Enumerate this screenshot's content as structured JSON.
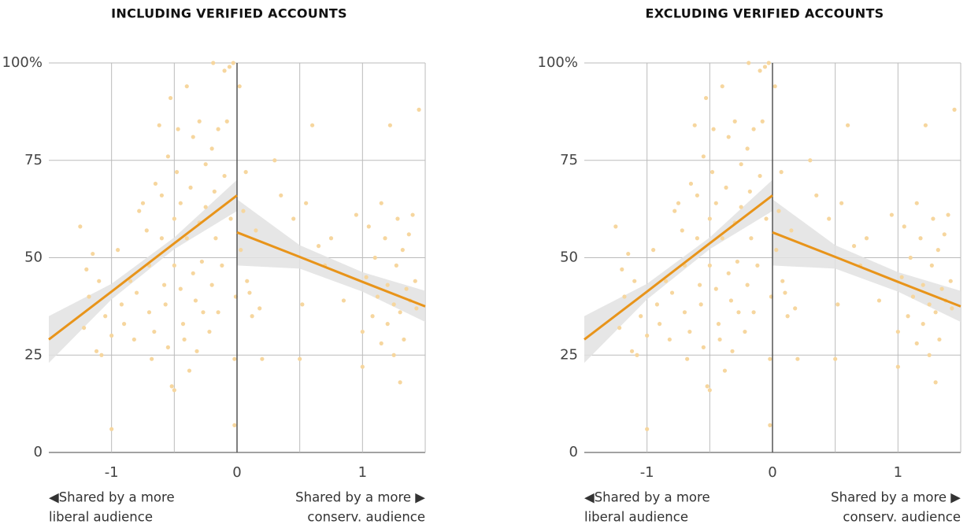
{
  "chart_data": [
    {
      "type": "scatter",
      "title": "INCLUDING VERIFIED ACCOUNTS",
      "xlim": [
        -1.5,
        1.5
      ],
      "xticks": [
        -1,
        0,
        1
      ],
      "xgrid": [
        -1,
        -0.5,
        0.5,
        1
      ],
      "zero_line": 0,
      "ylim": [
        0,
        100
      ],
      "yticks": [
        0,
        25,
        50,
        75,
        {
          "value": 100,
          "label": "100%"
        }
      ],
      "grid": true,
      "point_color": "#f6d69e",
      "line_color": "#e8941a",
      "band_color": "#e2e2e2",
      "x": [
        -1.25,
        -1.2,
        -1.15,
        -1.18,
        -1.22,
        -1.1,
        -1.05,
        -1.0,
        -1.0,
        -1.08,
        -1.12,
        -0.95,
        -0.92,
        -0.9,
        -0.85,
        -0.82,
        -0.8,
        -0.78,
        -0.75,
        -0.72,
        -0.7,
        -0.7,
        -0.68,
        -0.66,
        -0.65,
        -0.62,
        -0.6,
        -0.6,
        -0.58,
        -0.57,
        -0.55,
        -0.55,
        -0.53,
        -0.52,
        -0.5,
        -0.5,
        -0.5,
        -0.48,
        -0.47,
        -0.45,
        -0.45,
        -0.43,
        -0.42,
        -0.4,
        -0.4,
        -0.38,
        -0.37,
        -0.35,
        -0.35,
        -0.33,
        -0.32,
        -0.3,
        -0.3,
        -0.28,
        -0.27,
        -0.25,
        -0.25,
        -0.22,
        -0.2,
        -0.2,
        -0.18,
        -0.17,
        -0.15,
        -0.15,
        -0.19,
        -0.12,
        -0.1,
        -0.1,
        -0.08,
        -0.06,
        -0.05,
        -0.03,
        -0.02,
        -0.02,
        -0.01,
        0.02,
        0.03,
        0.05,
        0.07,
        0.08,
        0.1,
        0.12,
        0.15,
        0.18,
        0.2,
        0.3,
        0.35,
        0.45,
        0.5,
        0.52,
        0.55,
        0.6,
        0.65,
        0.7,
        0.75,
        0.85,
        0.95,
        1.0,
        1.0,
        1.03,
        1.05,
        1.08,
        1.1,
        1.12,
        1.15,
        1.15,
        1.18,
        1.2,
        1.2,
        1.22,
        1.25,
        1.25,
        1.27,
        1.28,
        1.3,
        1.3,
        1.32,
        1.33,
        1.35,
        1.37,
        1.38,
        1.4,
        1.42,
        1.43,
        1.45
      ],
      "values": [
        58,
        47,
        51,
        40,
        32,
        44,
        35,
        6,
        30,
        25,
        26,
        52,
        38,
        33,
        44,
        29,
        41,
        62,
        64,
        57,
        48,
        36,
        24,
        31,
        69,
        84,
        66,
        55,
        43,
        38,
        27,
        76,
        91,
        17,
        16,
        60,
        48,
        72,
        83,
        64,
        42,
        33,
        29,
        94,
        55,
        21,
        68,
        81,
        46,
        39,
        26,
        85,
        59,
        49,
        36,
        74,
        63,
        31,
        43,
        78,
        67,
        55,
        83,
        36,
        100,
        48,
        71,
        98,
        85,
        99,
        60,
        100,
        7,
        24,
        40,
        94,
        52,
        62,
        72,
        44,
        41,
        35,
        57,
        37,
        24,
        75,
        66,
        60,
        24,
        38,
        64,
        84,
        53,
        48,
        55,
        39,
        61,
        31,
        22,
        45,
        58,
        35,
        50,
        40,
        28,
        64,
        55,
        33,
        43,
        84,
        38,
        25,
        48,
        60,
        18,
        36,
        52,
        29,
        42,
        56,
        39,
        61,
        44,
        37,
        88
      ],
      "fits": [
        {
          "x": [
            -1.5,
            -1,
            -0.5,
            0
          ],
          "y": [
            29,
            41.3,
            53.7,
            66
          ],
          "lower": [
            23,
            39.3,
            52.2,
            62
          ],
          "upper": [
            35,
            43.3,
            55.2,
            70
          ]
        },
        {
          "x": [
            0,
            0.5,
            1,
            1.5
          ],
          "y": [
            56.5,
            50.2,
            43.8,
            37.5
          ],
          "lower": [
            48,
            47.2,
            41.3,
            33.5
          ],
          "upper": [
            65,
            53.2,
            46.3,
            41.5
          ]
        }
      ],
      "annotations": [
        {
          "lines": [
            "◀Shared by a more",
            "liberal audience"
          ]
        },
        {
          "lines": [
            "Shared by a more ▶",
            "conserv. audience"
          ]
        }
      ]
    },
    {
      "type": "scatter",
      "title": "EXCLUDING VERIFIED ACCOUNTS",
      "xlim": [
        -1.5,
        1.5
      ],
      "xticks": [
        -1,
        0,
        1
      ],
      "xgrid": [
        -1,
        -0.5,
        0.5,
        1
      ],
      "zero_line": 0,
      "ylim": [
        0,
        100
      ],
      "yticks": [
        0,
        25,
        50,
        75,
        {
          "value": 100,
          "label": "100%"
        }
      ],
      "grid": true,
      "point_color": "#f6d69e",
      "line_color": "#e8941a",
      "band_color": "#e2e2e2",
      "x": [
        -1.25,
        -1.2,
        -1.15,
        -1.18,
        -1.22,
        -1.1,
        -1.05,
        -1.0,
        -1.0,
        -1.08,
        -1.12,
        -0.95,
        -0.92,
        -0.9,
        -0.85,
        -0.82,
        -0.8,
        -0.78,
        -0.75,
        -0.72,
        -0.7,
        -0.7,
        -0.68,
        -0.66,
        -0.65,
        -0.62,
        -0.6,
        -0.6,
        -0.58,
        -0.57,
        -0.55,
        -0.55,
        -0.53,
        -0.52,
        -0.5,
        -0.5,
        -0.5,
        -0.48,
        -0.47,
        -0.45,
        -0.45,
        -0.43,
        -0.42,
        -0.4,
        -0.4,
        -0.38,
        -0.37,
        -0.35,
        -0.35,
        -0.33,
        -0.32,
        -0.3,
        -0.3,
        -0.28,
        -0.27,
        -0.25,
        -0.25,
        -0.22,
        -0.2,
        -0.2,
        -0.18,
        -0.17,
        -0.15,
        -0.15,
        -0.19,
        -0.12,
        -0.1,
        -0.1,
        -0.08,
        -0.06,
        -0.05,
        -0.03,
        -0.02,
        -0.02,
        -0.01,
        0.02,
        0.03,
        0.05,
        0.07,
        0.08,
        0.1,
        0.12,
        0.15,
        0.18,
        0.2,
        0.3,
        0.35,
        0.45,
        0.5,
        0.52,
        0.55,
        0.6,
        0.65,
        0.7,
        0.75,
        0.85,
        0.95,
        1.0,
        1.0,
        1.03,
        1.05,
        1.08,
        1.1,
        1.12,
        1.15,
        1.15,
        1.18,
        1.2,
        1.2,
        1.22,
        1.25,
        1.25,
        1.27,
        1.28,
        1.3,
        1.3,
        1.32,
        1.33,
        1.35,
        1.37,
        1.38,
        1.4,
        1.42,
        1.43,
        1.45
      ],
      "values": [
        58,
        47,
        51,
        40,
        32,
        44,
        35,
        6,
        30,
        25,
        26,
        52,
        38,
        33,
        44,
        29,
        41,
        62,
        64,
        57,
        48,
        36,
        24,
        31,
        69,
        84,
        66,
        55,
        43,
        38,
        27,
        76,
        91,
        17,
        16,
        60,
        48,
        72,
        83,
        64,
        42,
        33,
        29,
        94,
        55,
        21,
        68,
        81,
        46,
        39,
        26,
        85,
        59,
        49,
        36,
        74,
        63,
        31,
        43,
        78,
        67,
        55,
        83,
        36,
        100,
        48,
        71,
        98,
        85,
        99,
        60,
        100,
        7,
        24,
        40,
        94,
        52,
        62,
        72,
        44,
        41,
        35,
        57,
        37,
        24,
        75,
        66,
        60,
        24,
        38,
        64,
        84,
        53,
        48,
        55,
        39,
        61,
        31,
        22,
        45,
        58,
        35,
        50,
        40,
        28,
        64,
        55,
        33,
        43,
        84,
        38,
        25,
        48,
        60,
        18,
        36,
        52,
        29,
        42,
        56,
        39,
        61,
        44,
        37,
        88
      ],
      "fits": [
        {
          "x": [
            -1.5,
            -1,
            -0.5,
            0
          ],
          "y": [
            29,
            41.3,
            53.7,
            66
          ],
          "lower": [
            23,
            39.3,
            52.2,
            62
          ],
          "upper": [
            35,
            43.3,
            55.2,
            70
          ]
        },
        {
          "x": [
            0,
            0.5,
            1,
            1.5
          ],
          "y": [
            56.5,
            50.2,
            43.8,
            37.5
          ],
          "lower": [
            48,
            47.2,
            41.3,
            33.5
          ],
          "upper": [
            65,
            53.2,
            46.3,
            41.5
          ]
        }
      ],
      "annotations": [
        {
          "lines": [
            "◀Shared by a more",
            "liberal audience"
          ]
        },
        {
          "lines": [
            "Shared by a more ▶",
            "conserv. audience"
          ]
        }
      ]
    }
  ]
}
